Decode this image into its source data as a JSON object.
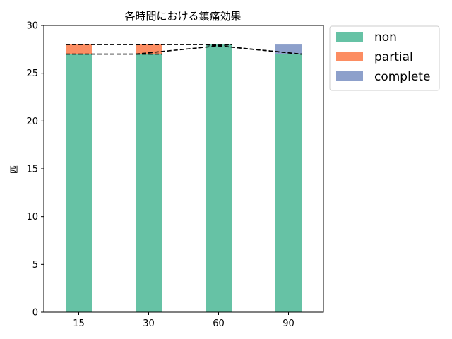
{
  "chart_data": {
    "type": "bar",
    "stacked": true,
    "title": "各時間における鎮痛効果",
    "xlabel": "",
    "ylabel": "匹",
    "categories": [
      "15",
      "30",
      "60",
      "90"
    ],
    "series": [
      {
        "name": "non",
        "values": [
          27,
          27,
          28,
          27
        ],
        "color": "#66c2a5"
      },
      {
        "name": "partial",
        "values": [
          1,
          1,
          0,
          0
        ],
        "color": "#fc8d62"
      },
      {
        "name": "complete",
        "values": [
          0,
          0,
          0,
          1
        ],
        "color": "#8da0cb"
      }
    ],
    "ylim": [
      0,
      30
    ],
    "yticks": [
      0,
      5,
      10,
      15,
      20,
      25,
      30
    ],
    "grid": false,
    "legend_position": "outside-top-right",
    "connector_lines": "dashed lines joining cumulative segment tops between adjacent bars"
  }
}
